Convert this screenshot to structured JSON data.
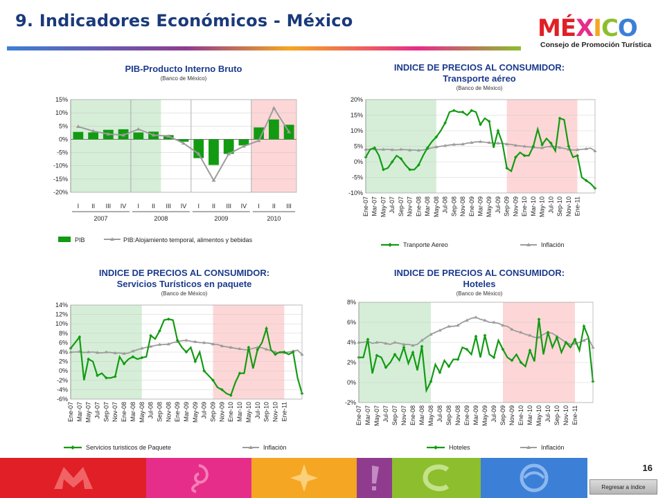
{
  "page": {
    "title": "9. Indicadores Económicos  - México",
    "page_number": "16",
    "back_button_label": "Regresar a índice",
    "logo_word": "MÉXICO",
    "logo_subtitle": "Consejo de Promoción Turística"
  },
  "colors": {
    "series_green": "#129b12",
    "inflation_gray": "#9c9c9c",
    "shade_green": "#d6eed8",
    "shade_red": "#fdd7d7",
    "title_blue": "#1a3a7a",
    "chart_title_blue": "#1b3a8c",
    "footer_blocks": [
      "#e01f26",
      "#e62d89",
      "#f5a623",
      "#8f3c8f",
      "#8cbe2e",
      "#3c7fd6"
    ]
  },
  "chart_data": [
    {
      "id": "pib",
      "type": "bar",
      "title": "PIB-Producto Interno Bruto",
      "subtitle": "(Banco de México)",
      "ylim": [
        -20,
        15
      ],
      "yticks": [
        15,
        10,
        5,
        0,
        -5,
        -10,
        -15,
        -20
      ],
      "categories": [
        "I",
        "II",
        "III",
        "IV",
        "I",
        "II",
        "III",
        "IV",
        "I",
        "II",
        "III",
        "IV",
        "I",
        "II",
        "III"
      ],
      "groups": [
        {
          "label": "2007",
          "start": 0,
          "end": 3
        },
        {
          "label": "2008",
          "start": 4,
          "end": 7
        },
        {
          "label": "2009",
          "start": 8,
          "end": 11
        },
        {
          "label": "2010",
          "start": 12,
          "end": 14
        }
      ],
      "shading": [
        {
          "color": "green",
          "start": 0,
          "end": 5
        },
        {
          "color": "red",
          "start": 12,
          "end": 14
        }
      ],
      "bar_series": {
        "name": "PIB",
        "values": [
          2.8,
          2.6,
          3.6,
          3.8,
          2.6,
          2.9,
          1.6,
          -0.9,
          -7.1,
          -9.7,
          -5.5,
          -2.3,
          4.5,
          7.5,
          5.5
        ]
      },
      "line_series": {
        "name": "PIB:Alojamiento temporal, alimentos y bebidas",
        "values": [
          4.8,
          3.1,
          2.0,
          1.6,
          3.8,
          1.6,
          1.2,
          -1.5,
          -5.5,
          -15.5,
          -5.5,
          -2.6,
          -0.5,
          11.8,
          2.8
        ]
      }
    },
    {
      "id": "transporte",
      "type": "line",
      "title": "INDICE DE PRECIOS AL CONSUMIDOR:",
      "subtitle_line": "Transporte aéreo",
      "subtitle": "(Banco de México)",
      "ylim": [
        -10,
        20
      ],
      "yticks": [
        20,
        15,
        10,
        5,
        0,
        -5,
        -10
      ],
      "xlabels": [
        "Ene-07",
        "Mar-07",
        "May-07",
        "Jul-07",
        "Sep-07",
        "Nov-07",
        "Ene-08",
        "Mar-08",
        "May-08",
        "Jul-08",
        "Sep-08",
        "Nov-08",
        "Ene-09",
        "Mar-09",
        "May-09",
        "Jul-09",
        "Sep-09",
        "Nov-09",
        "Ene-10",
        "Mar-10",
        "May-10",
        "Jul-10",
        "Sep-10",
        "Nov-10",
        "Ene-11"
      ],
      "shading": [
        {
          "color": "green",
          "start": 0,
          "end": 16
        },
        {
          "color": "red",
          "start": 32,
          "end": 48
        }
      ],
      "series": [
        {
          "name": "Tranporte Aereo",
          "values": [
            1.5,
            4.0,
            4.5,
            2.0,
            -2.5,
            -2.0,
            0.0,
            2.0,
            1.0,
            -1.0,
            -2.5,
            -2.5,
            -1.0,
            2.0,
            4.5,
            6.5,
            8.0,
            10.0,
            12.5,
            16.0,
            16.5,
            16.0,
            16.0,
            15.0,
            16.5,
            16.0,
            12.0,
            14.0,
            13.0,
            4.5,
            10.0,
            6.0,
            -2.0,
            -3.0,
            1.5,
            3.0,
            2.0,
            2.0,
            5.0,
            10.5,
            5.5,
            7.5,
            6.0,
            3.5,
            14.0,
            13.5,
            5.0,
            1.5,
            2.0,
            -5.0,
            -6.0,
            -7.0,
            -8.5
          ]
        },
        {
          "name": "Inflación",
          "values": [
            4.0,
            4.0,
            4.1,
            3.9,
            4.0,
            4.0,
            3.9,
            3.8,
            4.0,
            3.9,
            3.8,
            3.8,
            3.7,
            3.8,
            4.2,
            4.5,
            4.8,
            5.0,
            5.2,
            5.4,
            5.6,
            5.6,
            5.7,
            6.0,
            6.2,
            6.4,
            6.5,
            6.3,
            6.2,
            6.0,
            6.0,
            5.9,
            5.7,
            5.6,
            5.3,
            5.1,
            5.0,
            4.8,
            4.7,
            4.5,
            4.5,
            4.8,
            5.0,
            4.9,
            4.6,
            4.3,
            4.0,
            3.8,
            3.9,
            4.0,
            4.2,
            4.4,
            3.5
          ]
        }
      ]
    },
    {
      "id": "paquete",
      "type": "line",
      "title": "INDICE DE PRECIOS AL CONSUMIDOR:",
      "subtitle_line": "Servicios Turísticos en paquete",
      "subtitle": "(Banco de México)",
      "ylim": [
        -6,
        14
      ],
      "yticks": [
        14,
        12,
        10,
        8,
        6,
        4,
        2,
        0,
        -2,
        -4,
        -6
      ],
      "xlabels": [
        "Ene-07",
        "Mar-07",
        "May-07",
        "Jul-07",
        "Sep-07",
        "Nov-07",
        "Ene-08",
        "Mar-08",
        "May-08",
        "Jul-08",
        "Sep-08",
        "Nov-08",
        "Ene-09",
        "Mar-09",
        "May-09",
        "Jul-09",
        "Sep-09",
        "Nov-09",
        "Ene-10",
        "Mar-10",
        "May-10",
        "Jul-10",
        "Sep-10",
        "Nov-10",
        "Ene-11"
      ],
      "shading": [
        {
          "color": "green",
          "start": 0,
          "end": 16
        },
        {
          "color": "red",
          "start": 32,
          "end": 48
        }
      ],
      "series": [
        {
          "name": "Servicios turisticos de Paquete",
          "values": [
            4.8,
            6.0,
            7.2,
            -2.0,
            2.5,
            2.0,
            -1.0,
            -0.5,
            -1.5,
            -1.5,
            -1.2,
            3.0,
            1.5,
            2.5,
            3.0,
            2.5,
            2.8,
            3.0,
            7.5,
            6.8,
            8.5,
            10.8,
            11.0,
            10.8,
            6.5,
            5.0,
            4.0,
            5.0,
            2.0,
            4.0,
            0.0,
            -1.0,
            -2.0,
            -3.5,
            -4.0,
            -4.8,
            -5.2,
            -2.5,
            -0.5,
            -0.5,
            5.0,
            0.5,
            4.5,
            6.0,
            9.0,
            4.5,
            3.5,
            4.0,
            4.0,
            3.5,
            4.0,
            -1.5,
            -4.8
          ]
        },
        {
          "name": "Inflación",
          "values": [
            4.0,
            4.0,
            4.1,
            3.9,
            4.0,
            4.0,
            3.9,
            3.8,
            4.0,
            3.9,
            3.8,
            3.8,
            3.7,
            3.8,
            4.2,
            4.5,
            4.8,
            5.0,
            5.2,
            5.4,
            5.6,
            5.6,
            5.7,
            6.0,
            6.2,
            6.4,
            6.5,
            6.3,
            6.2,
            6.0,
            6.0,
            5.9,
            5.7,
            5.6,
            5.3,
            5.1,
            5.0,
            4.8,
            4.7,
            4.5,
            4.5,
            4.8,
            5.0,
            4.9,
            4.6,
            4.3,
            4.0,
            3.8,
            3.9,
            4.0,
            4.2,
            4.4,
            3.5
          ]
        }
      ]
    },
    {
      "id": "hoteles",
      "type": "line",
      "title": "INDICE DE PRECIOS AL CONSUMIDOR:",
      "subtitle_line": "Hoteles",
      "subtitle": "(Banco de México)",
      "ylim": [
        -2,
        8
      ],
      "yticks": [
        8,
        6,
        4,
        2,
        0,
        -2
      ],
      "xlabels": [
        "Ene-07",
        "Mar-07",
        "May-07",
        "Jul-07",
        "Sep-07",
        "Nov-07",
        "Ene-08",
        "Mar-08",
        "May-08",
        "Jul-08",
        "Sep-08",
        "Nov-08",
        "Ene-09",
        "Mar-09",
        "May-09",
        "Jul-09",
        "Sep-09",
        "Nov-09",
        "Ene-10",
        "Mar-10",
        "May-10",
        "Jul-10",
        "Sep-10",
        "Nov-10",
        "Ene-11"
      ],
      "shading": [
        {
          "color": "green",
          "start": 0,
          "end": 16
        },
        {
          "color": "red",
          "start": 32,
          "end": 48
        }
      ],
      "series": [
        {
          "name": "Hoteles",
          "values": [
            2.5,
            2.5,
            4.3,
            0.9,
            2.7,
            2.5,
            1.5,
            2.0,
            2.8,
            2.2,
            3.5,
            1.9,
            3.0,
            1.2,
            3.6,
            -0.8,
            0.1,
            1.8,
            1.0,
            2.2,
            1.6,
            2.3,
            2.3,
            3.5,
            3.3,
            2.8,
            4.6,
            2.5,
            4.7,
            2.8,
            2.5,
            4.2,
            3.3,
            2.5,
            2.2,
            2.8,
            2.0,
            1.6,
            3.2,
            2.1,
            6.3,
            2.8,
            5.0,
            3.5,
            4.5,
            3.0,
            4.0,
            3.5,
            4.3,
            3.2,
            5.6,
            4.5,
            0.1
          ]
        },
        {
          "name": "Inflación",
          "values": [
            4.0,
            4.0,
            4.1,
            3.9,
            4.0,
            4.0,
            3.9,
            3.8,
            4.0,
            3.9,
            3.8,
            3.8,
            3.7,
            3.8,
            4.2,
            4.5,
            4.8,
            5.0,
            5.2,
            5.4,
            5.6,
            5.6,
            5.7,
            6.0,
            6.2,
            6.4,
            6.5,
            6.3,
            6.2,
            6.0,
            6.0,
            5.9,
            5.7,
            5.6,
            5.3,
            5.1,
            5.0,
            4.8,
            4.7,
            4.5,
            4.5,
            4.8,
            5.0,
            4.9,
            4.6,
            4.3,
            4.0,
            3.8,
            3.9,
            4.0,
            4.2,
            4.4,
            3.5
          ]
        }
      ]
    }
  ]
}
